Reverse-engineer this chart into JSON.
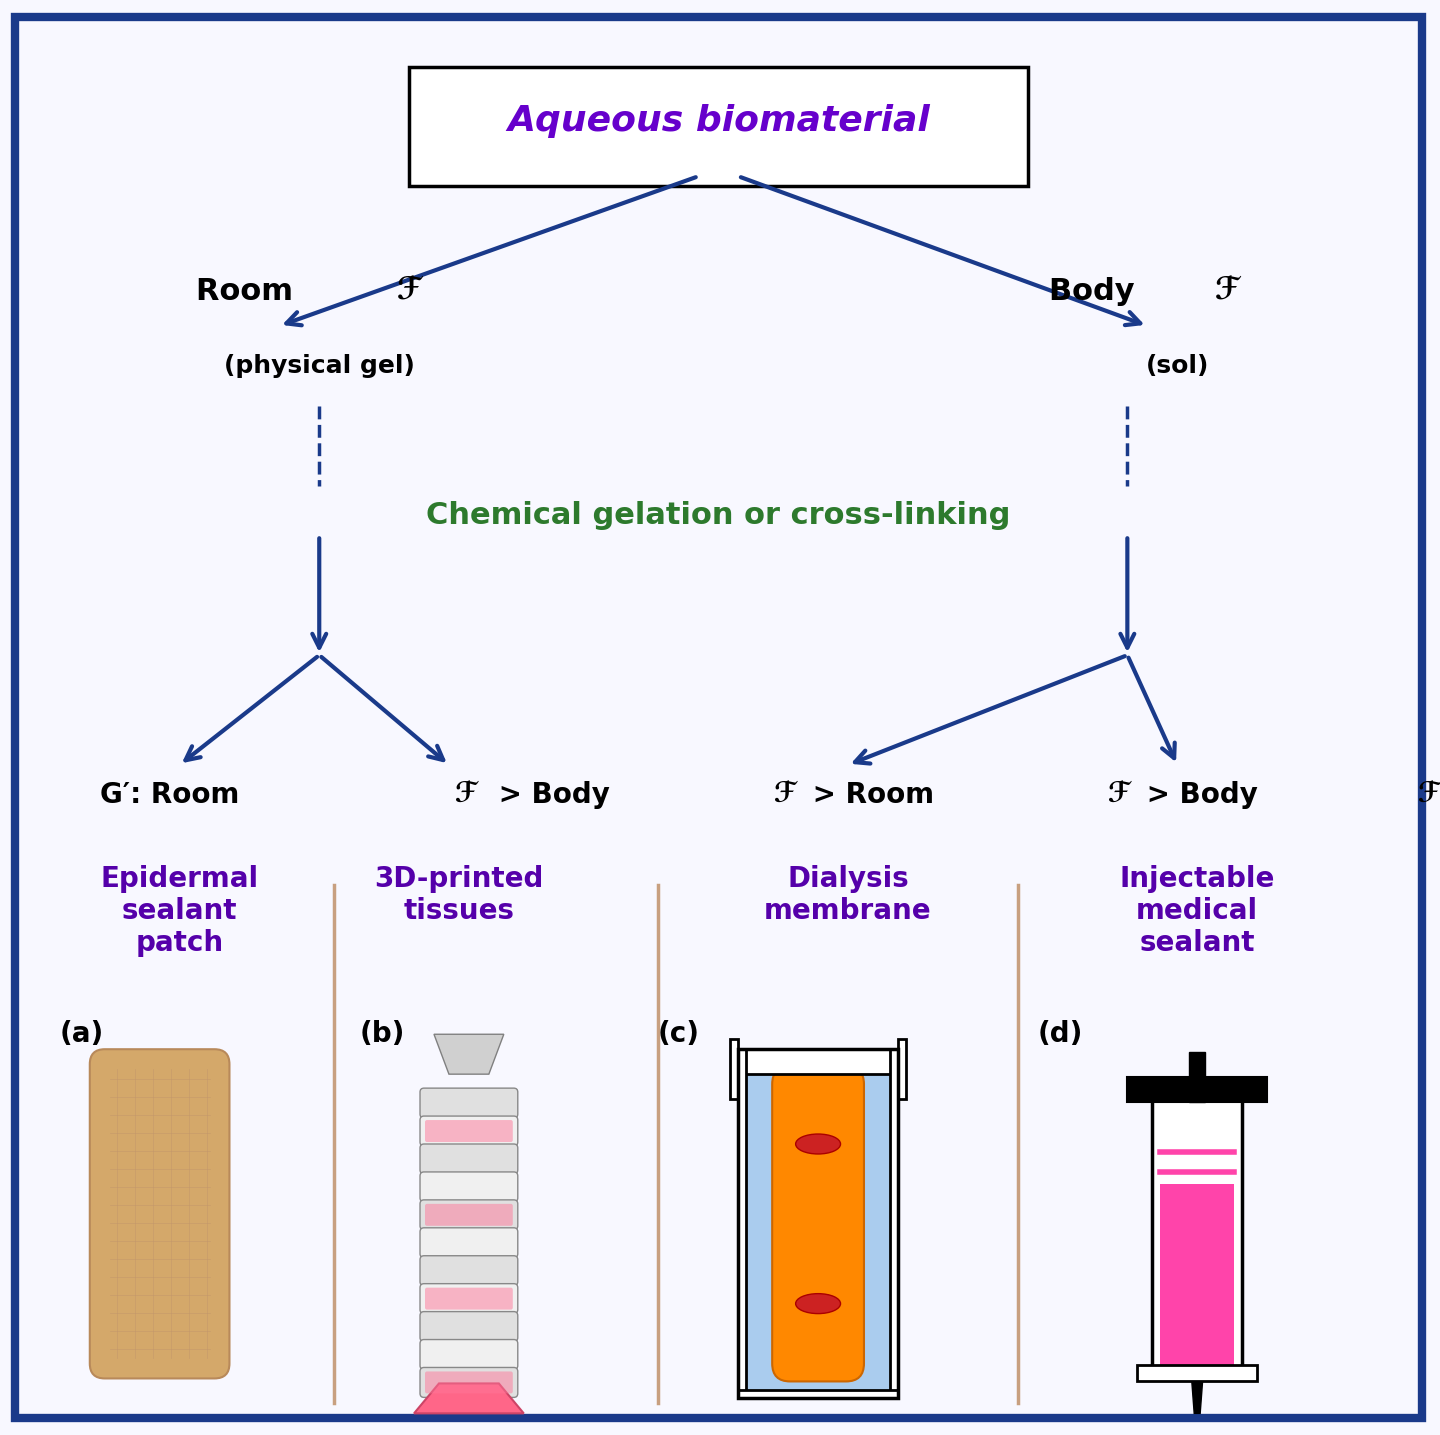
{
  "bg_color": "#f0f0ff",
  "border_color": "#1a3a8a",
  "arrow_color": "#1a3a8a",
  "title_text": "Aqueous biomaterial",
  "title_color": "#6600cc",
  "title_box_color": "#000000",
  "room_t_text": "Room ℱ",
  "room_t_sub": "(physical gel)",
  "body_t_text": "Body ℱ",
  "body_t_sub": "(sol)",
  "chem_gel_text": "Chemical gelation or cross-linking",
  "chem_gel_color": "#2d7a2d",
  "g_prime_text": "G’: Room ℱ > Body ℱ > Room ℱ > Body ℱ",
  "label_a": "(a)",
  "label_b": "(b)",
  "label_c": "(c)",
  "label_d": "(d)",
  "product_a": "Epidermal\nsealant\npatch",
  "product_b": "3D-printed\ntissues",
  "product_c": "Dialysis\nmembrane",
  "product_d": "Injectable\nmedical\nsealant",
  "product_color": "#5500aa",
  "text_color": "#000000",
  "separator_color": "#c8a080",
  "bg_fill": "#f8f8ff"
}
